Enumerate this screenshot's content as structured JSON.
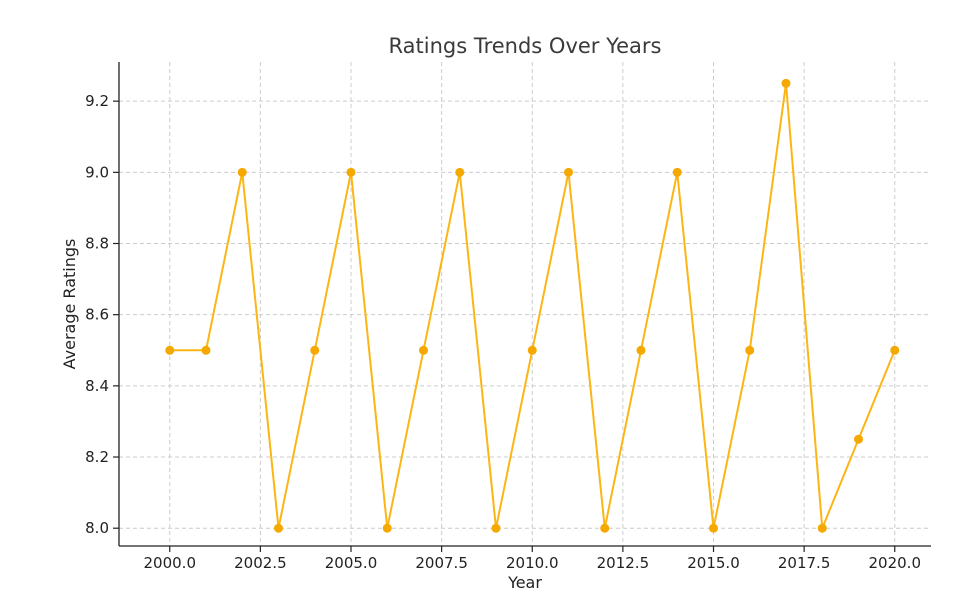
{
  "colors": {
    "series": "#FDB515",
    "marker": "#F5A800"
  },
  "chart_data": {
    "type": "line",
    "title": "Ratings Trends Over Years",
    "xlabel": "Year",
    "ylabel": "Average Ratings",
    "xlim": [
      1998.6,
      2021.0
    ],
    "ylim": [
      7.95,
      9.31
    ],
    "x_ticks": [
      2000.0,
      2002.5,
      2005.0,
      2007.5,
      2010.0,
      2012.5,
      2015.0,
      2017.5,
      2020.0
    ],
    "x_tick_labels": [
      "2000.0",
      "2002.5",
      "2005.0",
      "2007.5",
      "2010.0",
      "2012.5",
      "2015.0",
      "2017.5",
      "2020.0"
    ],
    "y_ticks": [
      8.0,
      8.2,
      8.4,
      8.6,
      8.8,
      9.0,
      9.2
    ],
    "y_tick_labels": [
      "8.0",
      "8.2",
      "8.4",
      "8.6",
      "8.8",
      "9.0",
      "9.2"
    ],
    "grid": true,
    "legend": "none",
    "series": [
      {
        "x": [
          2000,
          2001,
          2002,
          2003,
          2004,
          2005,
          2006,
          2007,
          2008,
          2009,
          2010,
          2011,
          2012,
          2013,
          2014,
          2015,
          2016,
          2017,
          2018,
          2019,
          2020
        ],
        "values": [
          8.5,
          8.5,
          9.0,
          8.0,
          8.5,
          9.0,
          8.0,
          8.5,
          9.0,
          8.0,
          8.5,
          9.0,
          8.0,
          8.5,
          9.0,
          8.0,
          8.5,
          9.25,
          8.0,
          8.25,
          8.5
        ]
      }
    ]
  }
}
